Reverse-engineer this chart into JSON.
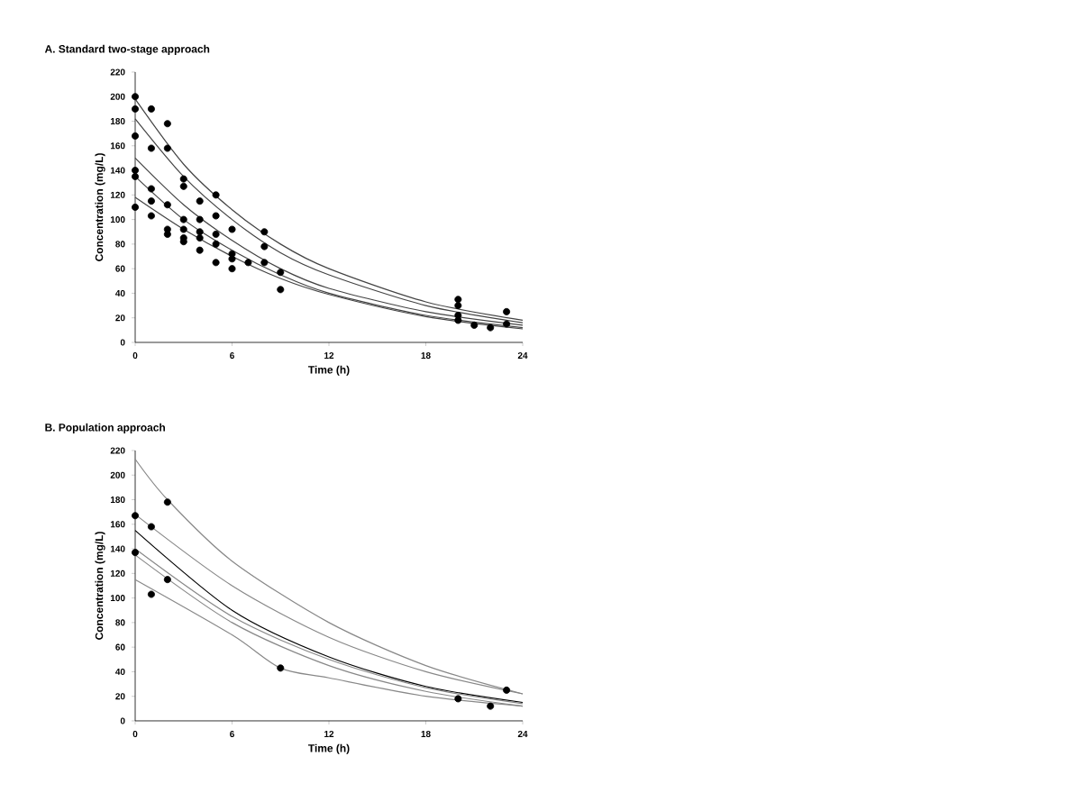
{
  "chart_data": [
    {
      "type": "scatter",
      "title": "A. Standard two-stage approach",
      "xlabel": "Time (h)",
      "ylabel": "Concentration (mg/L)",
      "xlim": [
        0,
        24
      ],
      "ylim": [
        0,
        220
      ],
      "xticks": [
        0,
        6,
        12,
        18,
        24
      ],
      "yticks": [
        0,
        20,
        40,
        60,
        80,
        100,
        120,
        140,
        160,
        180,
        200,
        220
      ],
      "series": [
        {
          "color": "#000000",
          "x": [
            0,
            0,
            0,
            0,
            0,
            0,
            1,
            1,
            1,
            1,
            1,
            2,
            2,
            2,
            2,
            2,
            3,
            3,
            3,
            3,
            3,
            3,
            4,
            4,
            4,
            4,
            4,
            5,
            5,
            5,
            5,
            5,
            6,
            6,
            6,
            6,
            7,
            8,
            8,
            8,
            9,
            9,
            20,
            20,
            20,
            20,
            21,
            22,
            23,
            23
          ],
          "values": [
            200,
            190,
            168,
            140,
            135,
            110,
            190,
            158,
            125,
            115,
            103,
            178,
            158,
            112,
            92,
            88,
            133,
            127,
            100,
            92,
            85,
            82,
            115,
            100,
            90,
            85,
            75,
            120,
            103,
            88,
            80,
            65,
            92,
            72,
            68,
            60,
            65,
            90,
            78,
            65,
            57,
            43,
            35,
            30,
            22,
            18,
            14,
            12,
            25,
            15
          ]
        },
        {
          "type": "line",
          "color": "#444444",
          "x": [
            0,
            3,
            6,
            9,
            12,
            18,
            24
          ],
          "values": [
            198,
            145,
            108,
            80,
            60,
            33,
            18
          ]
        },
        {
          "type": "line",
          "color": "#444444",
          "x": [
            0,
            3,
            6,
            9,
            12,
            18,
            24
          ],
          "values": [
            182,
            135,
            100,
            73,
            55,
            30,
            16
          ]
        },
        {
          "type": "line",
          "color": "#444444",
          "x": [
            0,
            3,
            6,
            9,
            12,
            18,
            24
          ],
          "values": [
            150,
            112,
            83,
            60,
            44,
            25,
            14
          ]
        },
        {
          "type": "line",
          "color": "#444444",
          "x": [
            0,
            3,
            6,
            9,
            12,
            18,
            24
          ],
          "values": [
            135,
            100,
            75,
            55,
            40,
            22,
            12
          ]
        },
        {
          "type": "line",
          "color": "#444444",
          "x": [
            0,
            3,
            6,
            9,
            12,
            18,
            24
          ],
          "values": [
            118,
            92,
            70,
            52,
            39,
            21,
            11
          ]
        }
      ]
    },
    {
      "type": "scatter",
      "title": "B. Population approach",
      "xlabel": "Time (h)",
      "ylabel": "Concentration (mg/L)",
      "xlim": [
        0,
        24
      ],
      "ylim": [
        0,
        220
      ],
      "xticks": [
        0,
        6,
        12,
        18,
        24
      ],
      "yticks": [
        0,
        20,
        40,
        60,
        80,
        100,
        120,
        140,
        160,
        180,
        200,
        220
      ],
      "series": [
        {
          "type": "line",
          "color": "#888888",
          "x": [
            0,
            2,
            6,
            12,
            18,
            24
          ],
          "values": [
            213,
            180,
            130,
            80,
            45,
            22
          ]
        },
        {
          "type": "line",
          "color": "#888888",
          "x": [
            0,
            6,
            12,
            18,
            24
          ],
          "values": [
            168,
            110,
            68,
            40,
            22
          ]
        },
        {
          "type": "line",
          "color": "#000000",
          "x": [
            0,
            6,
            12,
            18,
            24
          ],
          "values": [
            155,
            90,
            52,
            28,
            15
          ]
        },
        {
          "type": "line",
          "color": "#888888",
          "x": [
            0,
            6,
            12,
            18,
            24
          ],
          "values": [
            140,
            85,
            50,
            27,
            14
          ]
        },
        {
          "type": "line",
          "color": "#888888",
          "x": [
            0,
            6,
            12,
            18,
            24
          ],
          "values": [
            135,
            80,
            45,
            24,
            12
          ]
        },
        {
          "type": "line",
          "color": "#888888",
          "x": [
            0,
            6,
            9,
            12,
            18,
            24
          ],
          "values": [
            115,
            70,
            43,
            35,
            20,
            12
          ]
        },
        {
          "color": "#000000",
          "x": [
            0,
            0,
            1,
            1,
            2,
            2,
            9,
            20,
            22,
            23
          ],
          "values": [
            167,
            137,
            158,
            103,
            178,
            115,
            43,
            18,
            12,
            25
          ]
        }
      ]
    }
  ]
}
